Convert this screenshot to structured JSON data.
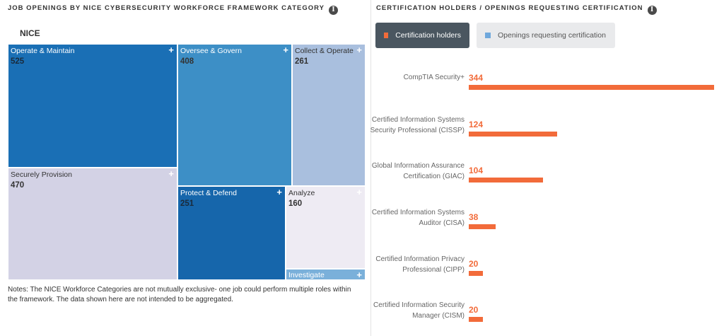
{
  "left_panel": {
    "title": "JOB OPENINGS BY NICE CYBERSECURITY WORKFORCE FRAMEWORK CATEGORY",
    "info_icon": "info-icon",
    "root_label": "NICE",
    "notes": "Notes: The NICE Workforce Categories are not mutually exclusive- one job could perform multiple roles within the framework. The data shown here are not intended to be aggregated."
  },
  "right_panel": {
    "title": "CERTIFICATION HOLDERS / OPENINGS REQUESTING CERTIFICATION",
    "info_icon": "info-icon",
    "legend": {
      "holders_label": "Certification holders",
      "openings_label": "Openings requesting certification"
    }
  },
  "colors": {
    "holders": "#f26b3a",
    "openings": "#6fa8dc",
    "legend_active_bg": "#4a5660",
    "legend_inactive_bg": "#e9eaec"
  },
  "chart_data": [
    {
      "type": "treemap",
      "title": "JOB OPENINGS BY NICE CYBERSECURITY WORKFORCE FRAMEWORK CATEGORY",
      "root": "NICE",
      "categories": [
        "Operate & Maintain",
        "Securely Provision",
        "Oversee & Govern",
        "Protect & Defend",
        "Collect & Operate",
        "Analyze",
        "Investigate"
      ],
      "values": [
        525,
        470,
        408,
        251,
        261,
        160,
        null
      ],
      "tile_colors": [
        "#1a6fb5",
        "#d3d2e5",
        "#3d8fc6",
        "#1666ab",
        "#a9bfde",
        "#eeebf3",
        "#7ab0da"
      ]
    },
    {
      "type": "bar",
      "orientation": "horizontal",
      "title": "CERTIFICATION HOLDERS / OPENINGS REQUESTING CERTIFICATION",
      "categories": [
        "CompTIA Security+",
        "Certified Information Systems Security Professional (CISSP)",
        "Global Information Assurance Certification (GIAC)",
        "Certified Information Systems Auditor (CISA)",
        "Certified Information Privacy Professional (CIPP)",
        "Certified Information Security Manager (CISM)"
      ],
      "series": [
        {
          "name": "Certification holders",
          "values": [
            344,
            124,
            104,
            38,
            20,
            20
          ]
        }
      ],
      "xlim": [
        0,
        344
      ]
    }
  ]
}
